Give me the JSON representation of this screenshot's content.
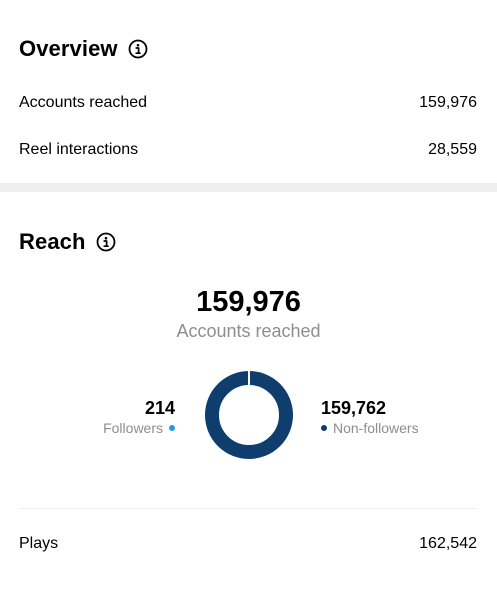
{
  "overview": {
    "title": "Overview",
    "rows": [
      {
        "label": "Accounts reached",
        "value": "159,976"
      },
      {
        "label": "Reel interactions",
        "value": "28,559"
      }
    ]
  },
  "reach": {
    "title": "Reach",
    "total": "159,976",
    "total_label": "Accounts reached",
    "followers": {
      "value": "214",
      "label": "Followers",
      "color": "#1d9bf0",
      "count": 214
    },
    "non_followers": {
      "value": "159,762",
      "label": "Non-followers",
      "color": "#0e3d6e",
      "count": 159762
    },
    "plays": {
      "label": "Plays",
      "value": "162,542"
    }
  },
  "icons": {
    "info": "info-circle-icon"
  },
  "colors": {
    "divider": "#efefef",
    "muted_text": "#8e8e8e"
  }
}
